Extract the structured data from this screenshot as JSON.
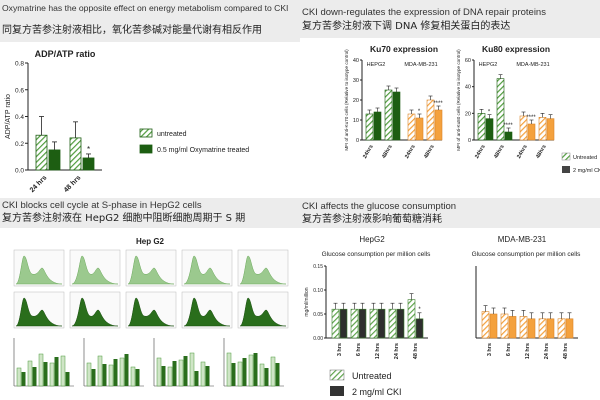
{
  "colors": {
    "untreated": "#4f9b3c",
    "treated": "#1d5e12",
    "hep_untreated": "#5da34a",
    "hep_treated": "#2e2e2e",
    "mda": "#f4a13d",
    "line": "#222222",
    "header_bg": "#ececec"
  },
  "panels": {
    "adp": {
      "title_en": "Oxymatrine has the opposite effect on energy metabolism compared to CKI",
      "title_cn": "同复方苦参注射液相比，氧化苦参碱对能量代谢有相反作用"
    },
    "ku": {
      "title_en": "CKI down-regulates the expression of DNA repair proteins",
      "title_cn": "复方苦参注射液下调 DNA 修复相关蛋白的表达"
    },
    "cycle": {
      "title_en": "CKI blocks cell cycle at S-phase in HepG2 cells",
      "title_cn": "复方苦参注射液在 HepG2 细胞中阻断细胞周期于 S 期",
      "figure_title": "Hep G2"
    },
    "glucose": {
      "title_en": "CKI affects the glucose consumption",
      "title_cn": "复方苦参注射液影响葡萄糖消耗",
      "legend": {
        "untreated": "Untreated",
        "treated": "2 mg/ml CKI"
      }
    }
  },
  "chart_data": [
    {
      "type": "bar",
      "title": "ADP/ATP ratio",
      "ylabel": "ADP/ATP ratio",
      "ylim": [
        0,
        0.8
      ],
      "yticks": [
        "0.0",
        "0.2",
        "0.4",
        "0.6",
        "0.8"
      ],
      "categories": [
        "24 hrs",
        "48 hrs"
      ],
      "series": [
        {
          "name": "untreated",
          "values": [
            0.26,
            0.24
          ],
          "errors": [
            0.14,
            0.12
          ]
        },
        {
          "name": "0.5 mg/ml Oxymatrine treated",
          "values": [
            0.15,
            0.09
          ],
          "errors": [
            0.06,
            0.03
          ]
        }
      ],
      "annotations": [
        "*"
      ],
      "legend": "right",
      "grid": false
    },
    {
      "type": "bar",
      "title": "Ku70 expression",
      "ylabel": "MFI of anti-Ku70 cells (Relative to isotype control)",
      "ylim": [
        0,
        40
      ],
      "yticks": [
        "0",
        "10",
        "20",
        "30",
        "40"
      ],
      "groups": [
        "HEPG2",
        "MDA-MB-231"
      ],
      "categories": [
        "24hrs",
        "48hrs",
        "24hrs",
        "48hrs"
      ],
      "series": [
        {
          "name": "Untreated",
          "values": [
            13,
            25,
            13,
            20
          ]
        },
        {
          "name": "2 mg/ml CKI",
          "values": [
            14,
            24,
            11,
            15
          ]
        }
      ],
      "annotations": [
        "*",
        "****"
      ]
    },
    {
      "type": "bar",
      "title": "Ku80 expression",
      "ylabel": "MFI of anti-Ku80 cells (Relative to isotype control)",
      "ylim": [
        0,
        60
      ],
      "yticks": [
        "0",
        "20",
        "40",
        "60"
      ],
      "groups": [
        "HEPG2",
        "MDA-MB-231"
      ],
      "categories": [
        "24hrs",
        "48hrs",
        "24hrs",
        "48hrs"
      ],
      "series": [
        {
          "name": "Untreated",
          "values": [
            20,
            46,
            18,
            17
          ]
        },
        {
          "name": "2 mg/ml CKI",
          "values": [
            16,
            6,
            12,
            16
          ]
        }
      ],
      "legend": "right",
      "annotations": [
        "*",
        "****",
        "****"
      ]
    },
    {
      "type": "bar",
      "title": "Glucose consumption per million cells",
      "ylabel": "mg/ml/million",
      "ylim": [
        0,
        0.15
      ],
      "yticks": [
        "0.00",
        "0.05",
        "0.10",
        "0.15"
      ],
      "group": "HepG2",
      "categories": [
        "3 hrs",
        "6 hrs",
        "12 hrs",
        "24 hrs",
        "48 hrs"
      ],
      "series": [
        {
          "name": "Untreated",
          "values": [
            0.06,
            0.06,
            0.06,
            0.06,
            0.08
          ]
        },
        {
          "name": "2 mg/ml CKI",
          "values": [
            0.06,
            0.06,
            0.06,
            0.06,
            0.04
          ]
        }
      ],
      "annotations": [
        "*"
      ]
    },
    {
      "type": "bar",
      "title": "Glucose consumption per million cells",
      "group": "MDA-MB-231",
      "ylim": [
        0,
        0.15
      ],
      "categories": [
        "3 hrs",
        "6 hrs",
        "12 hrs",
        "24 hrs",
        "48 hrs"
      ],
      "series": [
        {
          "name": "Untreated",
          "values": [
            0.055,
            0.05,
            0.045,
            0.04,
            0.04
          ]
        },
        {
          "name": "2 mg/ml CKI",
          "values": [
            0.05,
            0.045,
            0.04,
            0.04,
            0.04
          ]
        }
      ]
    }
  ]
}
